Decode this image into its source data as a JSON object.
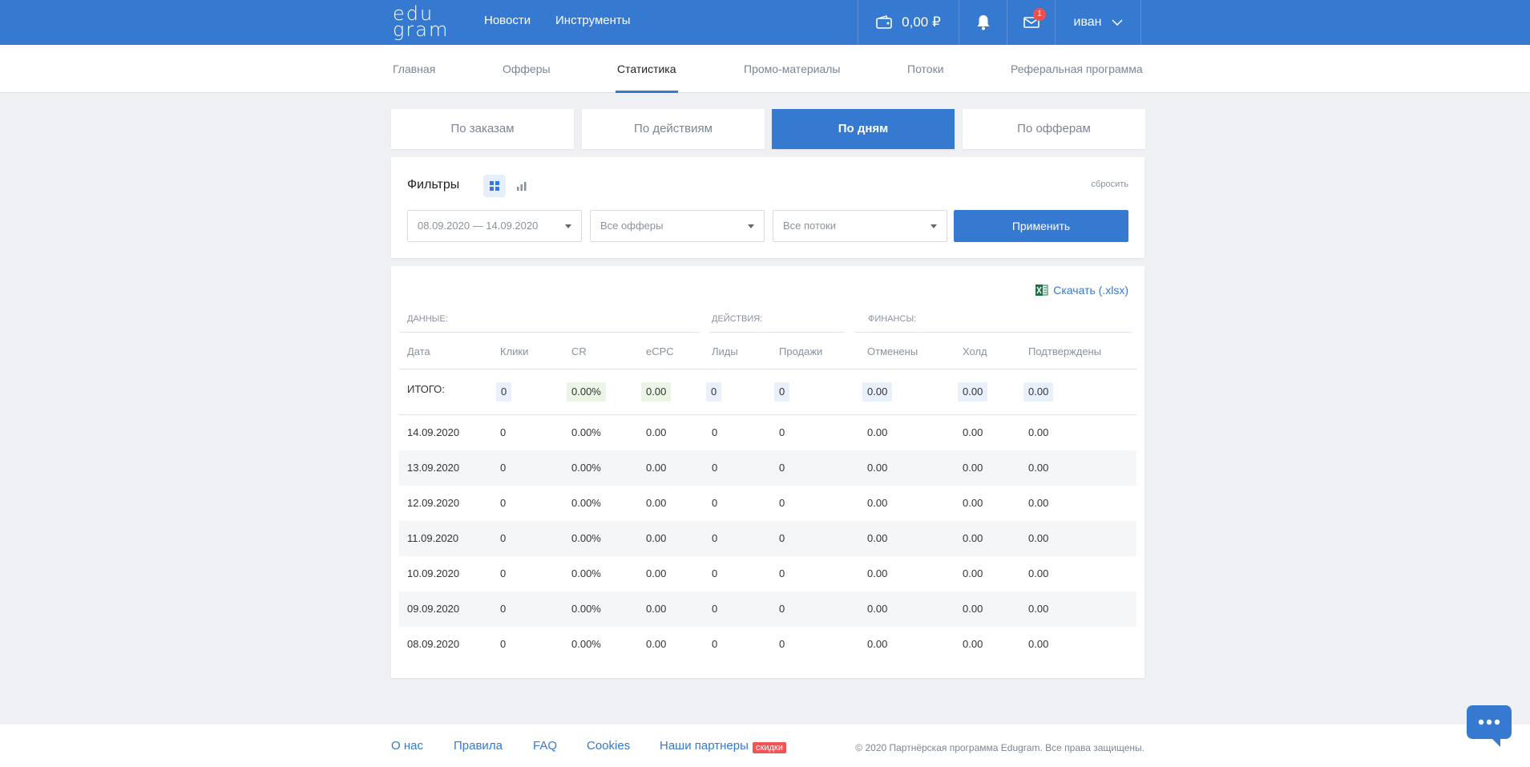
{
  "header": {
    "logo_line1": "edu",
    "logo_line2": "gram",
    "nav": [
      "Новости",
      "Инструменты"
    ],
    "balance": "0,00 ₽",
    "mail_badge": "1",
    "user": "иван"
  },
  "subnav": {
    "items": [
      "Главная",
      "Офферы",
      "Статистика",
      "Промо-материалы",
      "Потоки",
      "Реферальная программа"
    ],
    "active": "Статистика"
  },
  "tabs": {
    "items": [
      "По заказам",
      "По действиям",
      "По дням",
      "По офферам"
    ],
    "active": "По дням"
  },
  "filters": {
    "title": "Фильтры",
    "reset": "сбросить",
    "date_range": "08.09.2020 — 14.09.2020",
    "offers": "Все офферы",
    "flows": "Все потоки",
    "apply": "Применить"
  },
  "table": {
    "download": "Скачать (.xlsx)",
    "groups": [
      "Данные:",
      "Действия:",
      "Финансы:"
    ],
    "columns": [
      "Дата",
      "Клики",
      "CR",
      "eCPC",
      "Лиды",
      "Продажи",
      "Отменены",
      "Холд",
      "Подтверждены"
    ],
    "total_label": "ИТОГО:",
    "totals": [
      "0",
      "0.00%",
      "0.00",
      "0",
      "0",
      "0.00",
      "0.00",
      "0.00"
    ],
    "rows": [
      [
        "14.09.2020",
        "0",
        "0.00%",
        "0.00",
        "0",
        "0",
        "0.00",
        "0.00",
        "0.00"
      ],
      [
        "13.09.2020",
        "0",
        "0.00%",
        "0.00",
        "0",
        "0",
        "0.00",
        "0.00",
        "0.00"
      ],
      [
        "12.09.2020",
        "0",
        "0.00%",
        "0.00",
        "0",
        "0",
        "0.00",
        "0.00",
        "0.00"
      ],
      [
        "11.09.2020",
        "0",
        "0.00%",
        "0.00",
        "0",
        "0",
        "0.00",
        "0.00",
        "0.00"
      ],
      [
        "10.09.2020",
        "0",
        "0.00%",
        "0.00",
        "0",
        "0",
        "0.00",
        "0.00",
        "0.00"
      ],
      [
        "09.09.2020",
        "0",
        "0.00%",
        "0.00",
        "0",
        "0",
        "0.00",
        "0.00",
        "0.00"
      ],
      [
        "08.09.2020",
        "0",
        "0.00%",
        "0.00",
        "0",
        "0",
        "0.00",
        "0.00",
        "0.00"
      ]
    ]
  },
  "footer": {
    "links": [
      "О нас",
      "Правила",
      "FAQ",
      "Cookies",
      "Наши партнеры"
    ],
    "sale_badge": "скидки",
    "copyright": "© 2020 Партнёрская программа Edugram. Все права защищены."
  },
  "icons": {
    "wallet": "wallet-icon",
    "bell": "bell-icon",
    "mail": "mail-icon",
    "chevron": "chevron-down-icon",
    "grid": "grid-view-icon",
    "chart": "chart-view-icon",
    "excel": "excel-icon",
    "chat": "chat-icon"
  },
  "colors": {
    "accent": "#3579d0",
    "badge": "#f04f4f",
    "sale": "#f05454"
  }
}
